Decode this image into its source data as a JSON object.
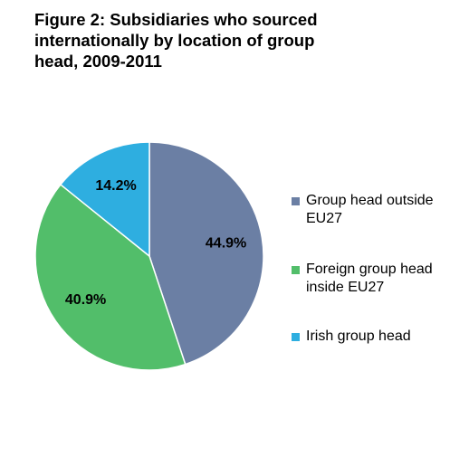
{
  "chart_data": {
    "type": "pie",
    "title": [
      "Figure 2: Subsidiaries who sourced",
      "internationally  by location of group",
      "head, 2009-2011"
    ],
    "categories": [
      "Group head outside EU27",
      "Foreign group head inside EU27",
      "Irish group head"
    ],
    "values": [
      44.9,
      40.9,
      14.2
    ],
    "value_labels": [
      "44.9%",
      "40.9%",
      "14.2%"
    ],
    "colors": [
      "#6b7fa4",
      "#52be6a",
      "#2eaee0"
    ],
    "legend": "right"
  }
}
